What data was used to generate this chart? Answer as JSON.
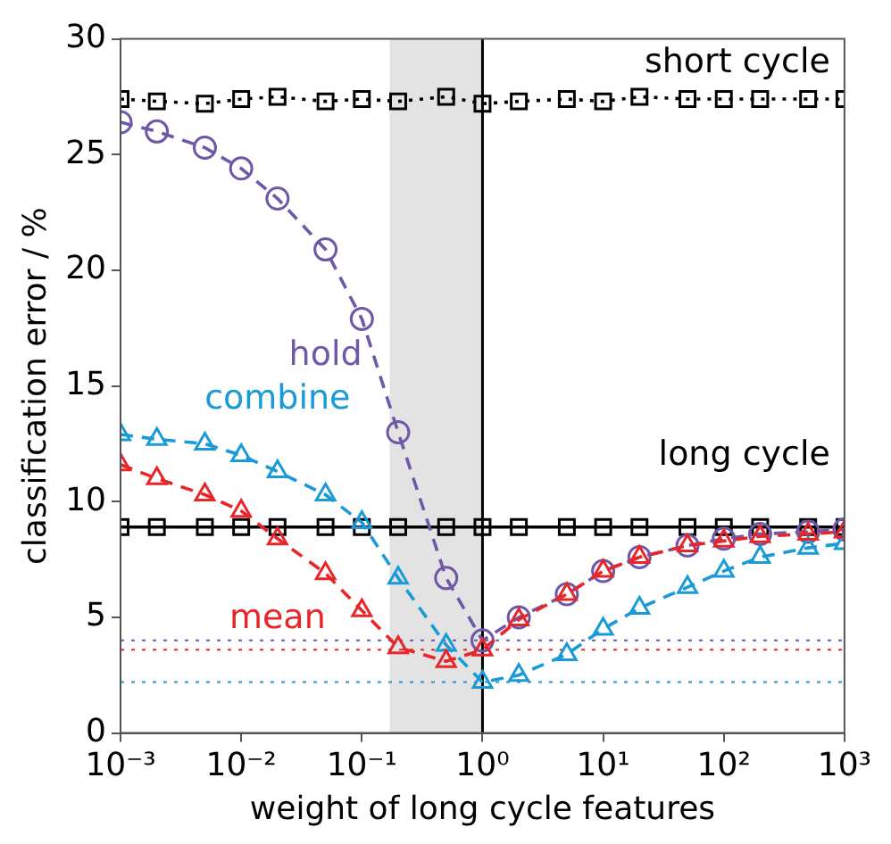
{
  "chart_data": {
    "type": "line",
    "xlabel": "weight of long cycle features",
    "ylabel": "classification error / %",
    "log": "x",
    "xlim": [
      0.001,
      1000
    ],
    "ylim": [
      0,
      30
    ],
    "xticks": [
      {
        "value": 0.001,
        "label": "10⁻³"
      },
      {
        "value": 0.01,
        "label": "10⁻²"
      },
      {
        "value": 0.1,
        "label": "10⁻¹"
      },
      {
        "value": 1,
        "label": "10⁰"
      },
      {
        "value": 10,
        "label": "10¹"
      },
      {
        "value": 100,
        "label": "10²"
      },
      {
        "value": 1000,
        "label": "10³"
      }
    ],
    "yticks": [
      0,
      5,
      10,
      15,
      20,
      25,
      30
    ],
    "grid": false,
    "legend": false,
    "x": [
      0.001,
      0.002,
      0.005,
      0.01,
      0.02,
      0.05,
      0.1,
      0.2,
      0.5,
      1,
      2,
      5,
      10,
      20,
      50,
      100,
      200,
      500,
      1000
    ],
    "series": [
      {
        "name": "short cycle",
        "color": "#000000",
        "marker": "square",
        "line_style": "dotted",
        "values": [
          27.4,
          27.3,
          27.2,
          27.4,
          27.5,
          27.3,
          27.4,
          27.3,
          27.5,
          27.2,
          27.3,
          27.4,
          27.3,
          27.5,
          27.4,
          27.4,
          27.4,
          27.4,
          27.4
        ]
      },
      {
        "name": "long cycle",
        "color": "#000000",
        "marker": "square",
        "line_style": "solid",
        "values": [
          8.9,
          8.9,
          8.9,
          8.9,
          8.9,
          8.9,
          8.9,
          8.9,
          8.9,
          8.9,
          8.9,
          8.9,
          8.9,
          8.9,
          8.9,
          8.9,
          8.9,
          8.9,
          8.9
        ]
      },
      {
        "name": "hold",
        "color": "#7058a8",
        "marker": "circle",
        "line_style": "dashed",
        "values": [
          26.4,
          26.0,
          25.3,
          24.4,
          23.1,
          20.9,
          17.9,
          13.0,
          6.7,
          4.0,
          5.0,
          6.0,
          7.0,
          7.6,
          8.1,
          8.4,
          8.6,
          8.7,
          8.8
        ]
      },
      {
        "name": "combine",
        "color": "#1a9ad6",
        "marker": "triangle",
        "line_style": "dashed",
        "values": [
          12.9,
          12.7,
          12.5,
          12.0,
          11.3,
          10.3,
          9.1,
          6.7,
          3.8,
          2.2,
          2.5,
          3.4,
          4.5,
          5.4,
          6.3,
          7.0,
          7.6,
          8.0,
          8.2
        ]
      },
      {
        "name": "mean",
        "color": "#e8262a",
        "marker": "triangle",
        "line_style": "dashed",
        "values": [
          11.6,
          11.0,
          10.3,
          9.6,
          8.4,
          6.9,
          5.3,
          3.7,
          3.1,
          3.6,
          4.9,
          6.0,
          7.0,
          7.6,
          8.1,
          8.3,
          8.5,
          8.6,
          8.7
        ]
      }
    ],
    "ref_lines": [
      {
        "axis": "x",
        "value": 1,
        "color": "#000000",
        "line_style": "solid"
      },
      {
        "axis": "y",
        "value": 4.0,
        "color": "#7058a8",
        "line_style": "dotted"
      },
      {
        "axis": "y",
        "value": 3.6,
        "color": "#e8262a",
        "line_style": "dotted"
      },
      {
        "axis": "y",
        "value": 2.2,
        "color": "#1a9ad6",
        "line_style": "dotted"
      }
    ],
    "bands": [
      {
        "axis": "x",
        "from": 0.17,
        "to": 1,
        "color": "#e3e3e3"
      }
    ]
  }
}
